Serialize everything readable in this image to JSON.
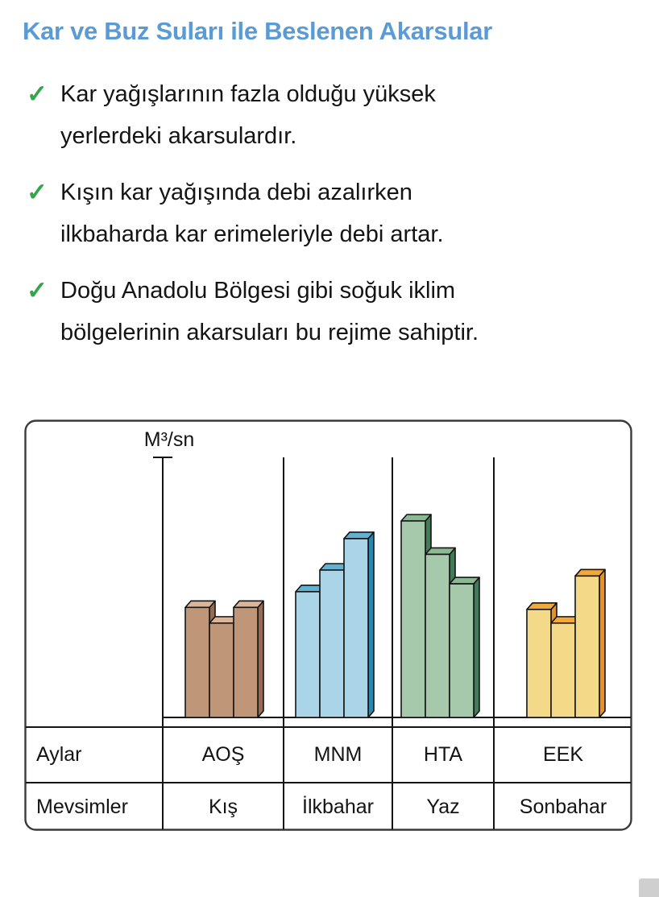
{
  "header": {
    "title": "Kar ve Buz Suları ile Beslenen Akarsular",
    "title_color": "#5b9bd5"
  },
  "check": {
    "glyph": "✓",
    "color": "#33a64c"
  },
  "bullets": [
    {
      "lines": [
        "Kar yağışlarının fazla olduğu yüksek",
        "yerlerdeki akarsulardır."
      ]
    },
    {
      "lines": [
        "Kışın kar yağışında debi azalırken",
        "ilkbaharda kar erimeleriyle debi artar."
      ]
    },
    {
      "lines": [
        "Doğu Anadolu Bölgesi gibi soğuk iklim",
        "bölgelerinin akarsuları bu rejime sahiptir."
      ]
    }
  ],
  "chart_data": {
    "type": "bar",
    "title": "",
    "ylabel": "M³/sn",
    "xlabel": "Aylar / Mevsimler",
    "value_units": "relative flow (no numeric scale shown)",
    "ylim": [
      0,
      100
    ],
    "grid": false,
    "legend": "none",
    "bars_per_group": 3,
    "categories": [
      "AOŞ",
      "MNM",
      "HTA",
      "EEK"
    ],
    "seasons": [
      "Kış",
      "İlkbahar",
      "Yaz",
      "Sonbahar"
    ],
    "series": [
      {
        "group": "AOŞ",
        "season": "Kış",
        "values": [
          56,
          48,
          56
        ],
        "colors": {
          "front": "#c09679",
          "top": "#dcb498",
          "side": "#9a6a4e"
        }
      },
      {
        "group": "MNM",
        "season": "İlkbahar",
        "values": [
          64,
          75,
          91
        ],
        "colors": {
          "front": "#aad5e9",
          "top": "#62b1d0",
          "side": "#2e86ad"
        }
      },
      {
        "group": "HTA",
        "season": "Yaz",
        "values": [
          100,
          83,
          68
        ],
        "colors": {
          "front": "#a7c9ab",
          "top": "#8ab992",
          "side": "#3f7d57"
        }
      },
      {
        "group": "EEK",
        "season": "Sonbahar",
        "values": [
          55,
          48,
          72
        ],
        "colors": {
          "front": "#f4da88",
          "top": "#f2a93b",
          "side": "#ee8f23"
        }
      }
    ],
    "line_color": "#141414",
    "box_border_color": "#3a3a3a"
  },
  "table": {
    "rows": [
      {
        "header": "Aylar",
        "cells": [
          "AOŞ",
          "MNM",
          "HTA",
          "EEK"
        ]
      },
      {
        "header": "Mevsimler",
        "cells": [
          "Kış",
          "İlkbahar",
          "Yaz",
          "Sonbahar"
        ]
      }
    ]
  }
}
